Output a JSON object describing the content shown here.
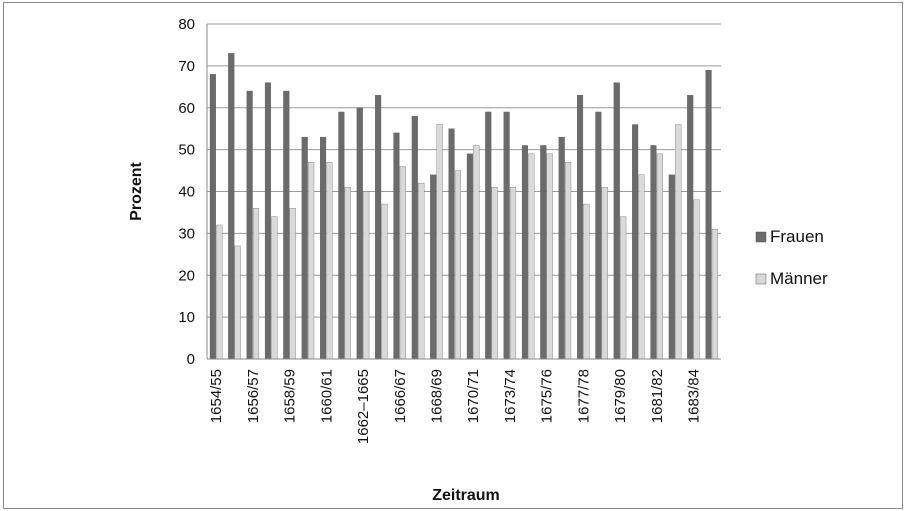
{
  "chart_data": {
    "type": "bar",
    "xlabel": "Zeitraum",
    "ylabel": "Prozent",
    "ylim": [
      0,
      80
    ],
    "yticks": [
      0,
      10,
      20,
      30,
      40,
      50,
      60,
      70,
      80
    ],
    "grid": true,
    "legend_position": "right",
    "categories": [
      "1654/55",
      "",
      "1656/57",
      "",
      "1658/59",
      "",
      "1660/61",
      "",
      "1662–1665",
      "",
      "1666/67",
      "",
      "1668/69",
      "",
      "1670/71",
      "",
      "1673/74",
      "",
      "1675/76",
      "",
      "1677/78",
      "",
      "1679/80",
      "",
      "1681/82",
      "",
      "1683/84",
      ""
    ],
    "series": [
      {
        "name": "Frauen",
        "color": "#6b6b6b",
        "values": [
          68,
          73,
          64,
          66,
          64,
          53,
          53,
          59,
          60,
          63,
          54,
          58,
          44,
          55,
          49,
          59,
          59,
          51,
          51,
          53,
          63,
          59,
          66,
          56,
          51,
          44,
          63,
          69
        ]
      },
      {
        "name": "Männer",
        "color": "#d9d9d9",
        "values": [
          32,
          27,
          36,
          34,
          36,
          47,
          47,
          41,
          40,
          37,
          46,
          42,
          56,
          45,
          51,
          41,
          41,
          49,
          49,
          47,
          37,
          41,
          34,
          44,
          49,
          56,
          38,
          31
        ]
      }
    ]
  }
}
